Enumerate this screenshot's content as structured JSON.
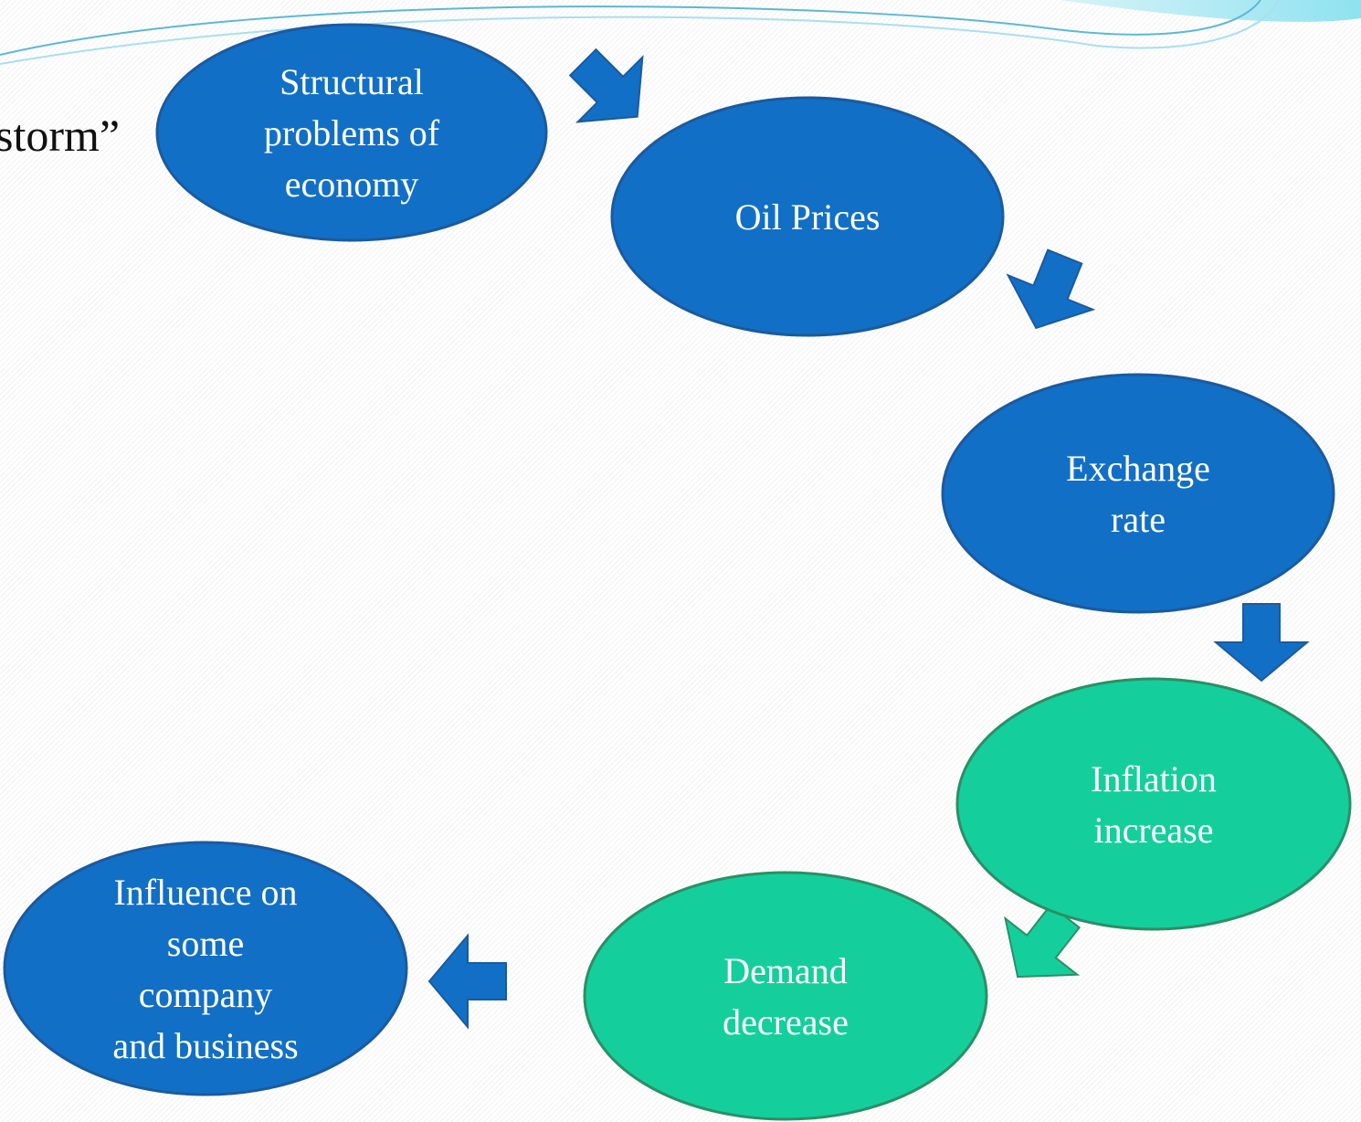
{
  "title_fragment": "storm”",
  "nodes": [
    {
      "lines": [
        "Structural",
        "problems of",
        "economy"
      ]
    },
    {
      "lines": [
        "Oil Prices"
      ]
    },
    {
      "lines": [
        "Exchange",
        "rate"
      ]
    },
    {
      "lines": [
        "Inflation",
        "increase"
      ]
    },
    {
      "lines": [
        "Demand",
        "decrease"
      ]
    },
    {
      "lines": [
        "Influence on",
        "some",
        "company",
        "and business"
      ]
    }
  ]
}
